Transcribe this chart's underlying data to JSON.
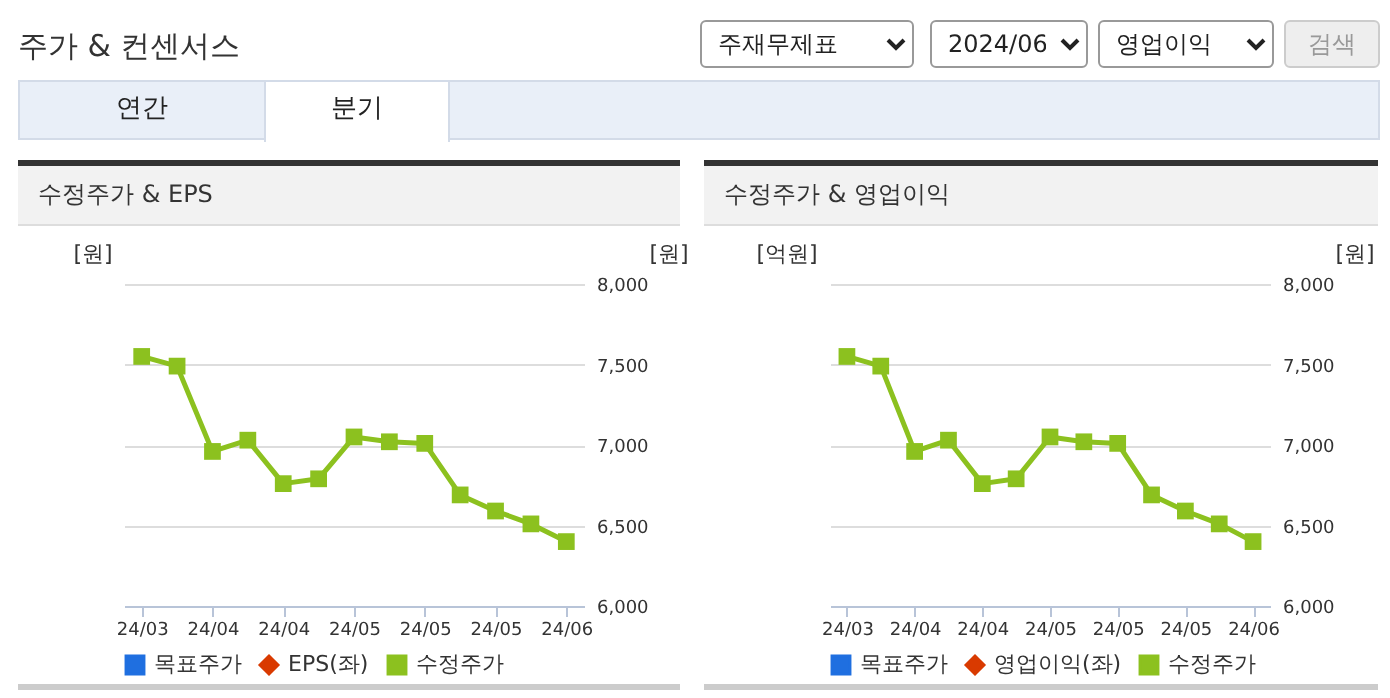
{
  "chart_data": [
    {
      "type": "other",
      "title": "주가 & 컨센서스",
      "annotations": [
        "주재무제표",
        "2024/06",
        "영업이익",
        "검색",
        "연간",
        "분기"
      ]
    },
    {
      "type": "line",
      "title": "수정주가 & EPS",
      "ylabel": "[원]",
      "y2label": "[원]",
      "categories": [
        "24/03",
        null,
        "24/04",
        null,
        "24/04",
        null,
        "24/05",
        null,
        "24/05",
        null,
        "24/05",
        null,
        "24/06"
      ],
      "series": [
        {
          "name": "목표주가",
          "color": "#1f6fe0",
          "marker": "square",
          "values": [
            null,
            null,
            null,
            null,
            null,
            null,
            null,
            null,
            null,
            null,
            null,
            null,
            null
          ]
        },
        {
          "name": "EPS(좌)",
          "color": "#d93a00",
          "marker": "diamond",
          "values": [
            null,
            null,
            null,
            null,
            null,
            null,
            null,
            null,
            null,
            null,
            null,
            null,
            null
          ]
        },
        {
          "name": "수정주가",
          "color": "#8cc11f",
          "marker": "square",
          "axis": "y2",
          "values": [
            7550,
            7490,
            6960,
            7030,
            6760,
            6790,
            7050,
            7020,
            7010,
            6690,
            6590,
            6510,
            6400
          ]
        }
      ],
      "y2lim": [
        6000,
        8000
      ],
      "y2ticks": [
        {
          "value": 6000,
          "label": "6,000"
        },
        {
          "value": 6500,
          "label": "6,500"
        },
        {
          "value": 7000,
          "label": "7,000"
        },
        {
          "value": 7500,
          "label": "7,500"
        },
        {
          "value": 8000,
          "label": "8,000"
        }
      ],
      "grid": "y",
      "legend": "bottom"
    },
    {
      "type": "line",
      "title": "수정주가 & 영업이익",
      "ylabel": "[억원]",
      "y2label": "[원]",
      "categories": [
        "24/03",
        null,
        "24/04",
        null,
        "24/04",
        null,
        "24/05",
        null,
        "24/05",
        null,
        "24/05",
        null,
        "24/06"
      ],
      "series": [
        {
          "name": "목표주가",
          "color": "#1f6fe0",
          "marker": "square",
          "values": [
            null,
            null,
            null,
            null,
            null,
            null,
            null,
            null,
            null,
            null,
            null,
            null,
            null
          ]
        },
        {
          "name": "영업이익(좌)",
          "color": "#d93a00",
          "marker": "diamond",
          "values": [
            null,
            null,
            null,
            null,
            null,
            null,
            null,
            null,
            null,
            null,
            null,
            null,
            null
          ]
        },
        {
          "name": "수정주가",
          "color": "#8cc11f",
          "marker": "square",
          "axis": "y2",
          "values": [
            7550,
            7490,
            6960,
            7030,
            6760,
            6790,
            7050,
            7020,
            7010,
            6690,
            6590,
            6510,
            6400
          ]
        }
      ],
      "y2lim": [
        6000,
        8000
      ],
      "y2ticks": [
        {
          "value": 6000,
          "label": "6,000"
        },
        {
          "value": 6500,
          "label": "6,500"
        },
        {
          "value": 7000,
          "label": "7,000"
        },
        {
          "value": 7500,
          "label": "7,500"
        },
        {
          "value": 8000,
          "label": "8,000"
        }
      ],
      "grid": "y",
      "legend": "bottom"
    }
  ]
}
